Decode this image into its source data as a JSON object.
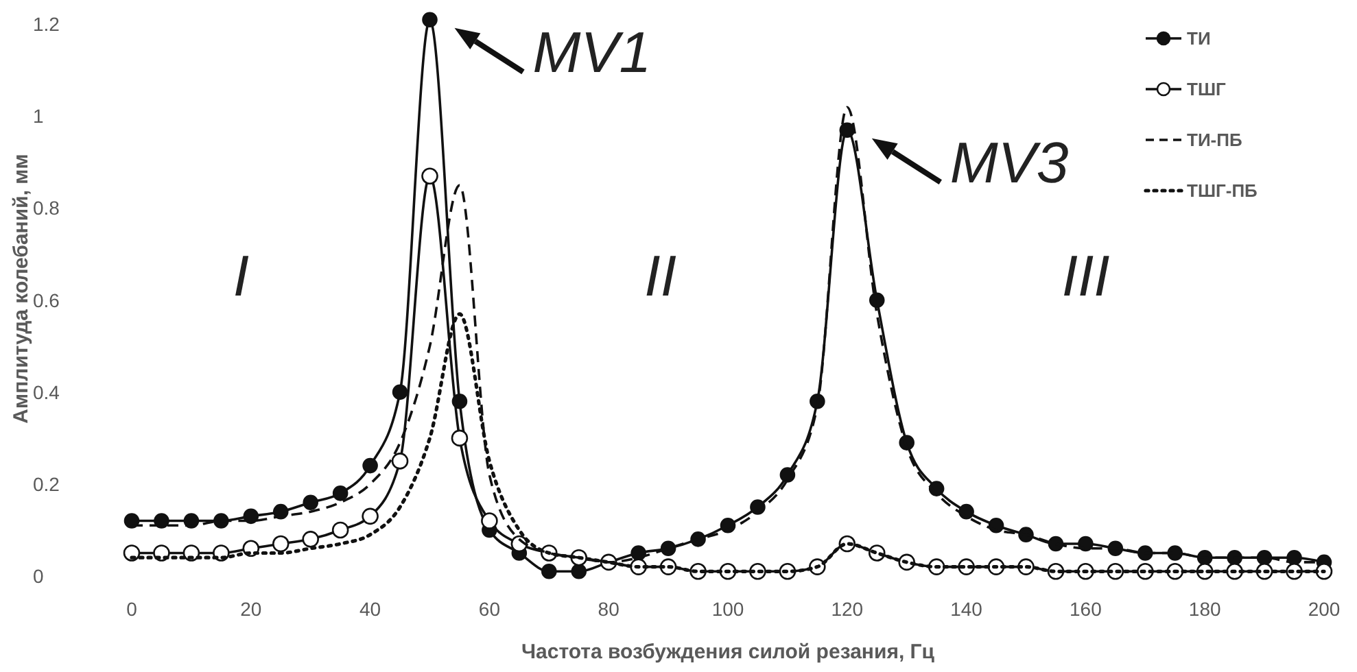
{
  "chart_data": {
    "type": "line",
    "xlabel": "Частота возбуждения силой резания, Гц",
    "ylabel": "Амплитуда колебаний, мм",
    "x": [
      0,
      5,
      10,
      15,
      20,
      25,
      30,
      35,
      40,
      45,
      50,
      55,
      60,
      65,
      70,
      75,
      80,
      85,
      90,
      95,
      100,
      105,
      110,
      115,
      120,
      125,
      130,
      135,
      140,
      145,
      150,
      155,
      160,
      165,
      170,
      175,
      180,
      185,
      190,
      195,
      200
    ],
    "xlim": [
      0,
      200
    ],
    "xticks": [
      0,
      20,
      40,
      60,
      80,
      100,
      120,
      140,
      160,
      180,
      200
    ],
    "ylim": [
      0,
      1.25
    ],
    "yticks": [
      0,
      {
        "value": 0.2,
        "label": "0.2"
      },
      {
        "value": 0.4,
        "label": "0.4"
      },
      {
        "value": 0.6,
        "label": "0.6"
      },
      {
        "value": 0.8,
        "label": "0.8"
      },
      1,
      {
        "value": 1.2,
        "label": "1.2"
      }
    ],
    "grid": false,
    "legend": "top right",
    "series": [
      {
        "name": "ТИ",
        "color": "#111111",
        "marker": "circle",
        "line_style": "solid",
        "values": [
          0.12,
          0.12,
          0.12,
          0.12,
          0.13,
          0.14,
          0.16,
          0.18,
          0.24,
          0.4,
          1.21,
          0.38,
          0.1,
          0.05,
          0.01,
          0.01,
          0.03,
          0.05,
          0.06,
          0.08,
          0.11,
          0.15,
          0.22,
          0.38,
          0.97,
          0.6,
          0.29,
          0.19,
          0.14,
          0.11,
          0.09,
          0.07,
          0.07,
          0.06,
          0.05,
          0.05,
          0.04,
          0.04,
          0.04,
          0.04,
          0.03
        ]
      },
      {
        "name": "ТШГ",
        "color": "#111111",
        "marker": "circle",
        "line_style": "solid",
        "colors": [
          "#ffffff",
          "#ffffff",
          "#ffffff",
          "#ffffff",
          "#ffffff",
          "#ffffff",
          "#ffffff",
          "#ffffff",
          "#ffffff",
          "#ffffff",
          "#ffffff",
          "#ffffff",
          "#ffffff",
          "#ffffff",
          "#ffffff",
          "#ffffff",
          "#ffffff",
          "#ffffff",
          "#ffffff",
          "#ffffff",
          "#ffffff",
          "#ffffff",
          "#ffffff",
          "#ffffff",
          "#ffffff",
          "#ffffff",
          "#ffffff",
          "#ffffff",
          "#ffffff",
          "#ffffff",
          "#ffffff",
          "#ffffff",
          "#ffffff",
          "#ffffff",
          "#ffffff",
          "#ffffff",
          "#ffffff",
          "#ffffff",
          "#ffffff",
          "#ffffff",
          "#ffffff"
        ],
        "values": [
          0.05,
          0.05,
          0.05,
          0.05,
          0.06,
          0.07,
          0.08,
          0.1,
          0.13,
          0.25,
          0.87,
          0.3,
          0.12,
          0.07,
          0.05,
          0.04,
          0.03,
          0.02,
          0.02,
          0.01,
          0.01,
          0.01,
          0.01,
          0.02,
          0.07,
          0.05,
          0.03,
          0.02,
          0.02,
          0.02,
          0.02,
          0.01,
          0.01,
          0.01,
          0.01,
          0.01,
          0.01,
          0.01,
          0.01,
          0.01,
          0.01
        ]
      },
      {
        "name": "ТИ-ПБ",
        "color": "#111111",
        "marker": "none",
        "line_style": "dashed",
        "values": [
          0.11,
          0.11,
          0.11,
          0.12,
          0.12,
          0.13,
          0.14,
          0.16,
          0.2,
          0.29,
          0.5,
          0.85,
          0.22,
          0.08,
          0.05,
          0.04,
          0.03,
          0.04,
          0.06,
          0.08,
          0.1,
          0.14,
          0.21,
          0.37,
          1.02,
          0.57,
          0.28,
          0.18,
          0.13,
          0.1,
          0.09,
          0.07,
          0.06,
          0.06,
          0.05,
          0.05,
          0.04,
          0.04,
          0.04,
          0.03,
          0.03
        ]
      },
      {
        "name": "ТШГ-ПБ",
        "color": "#111111",
        "marker": "none",
        "line_style": "dotted",
        "values": [
          0.04,
          0.04,
          0.04,
          0.04,
          0.05,
          0.05,
          0.06,
          0.07,
          0.09,
          0.15,
          0.3,
          0.57,
          0.25,
          0.1,
          0.05,
          0.04,
          0.03,
          0.02,
          0.02,
          0.01,
          0.01,
          0.01,
          0.01,
          0.02,
          0.07,
          0.05,
          0.03,
          0.02,
          0.02,
          0.02,
          0.02,
          0.01,
          0.01,
          0.01,
          0.01,
          0.01,
          0.01,
          0.01,
          0.01,
          0.01,
          0.01
        ]
      }
    ],
    "annotations": [
      {
        "text": "MV1",
        "x": 50,
        "y": 1.21
      },
      {
        "text": "MV3",
        "x": 120,
        "y": 0.97
      },
      "I",
      "II",
      "III"
    ]
  }
}
